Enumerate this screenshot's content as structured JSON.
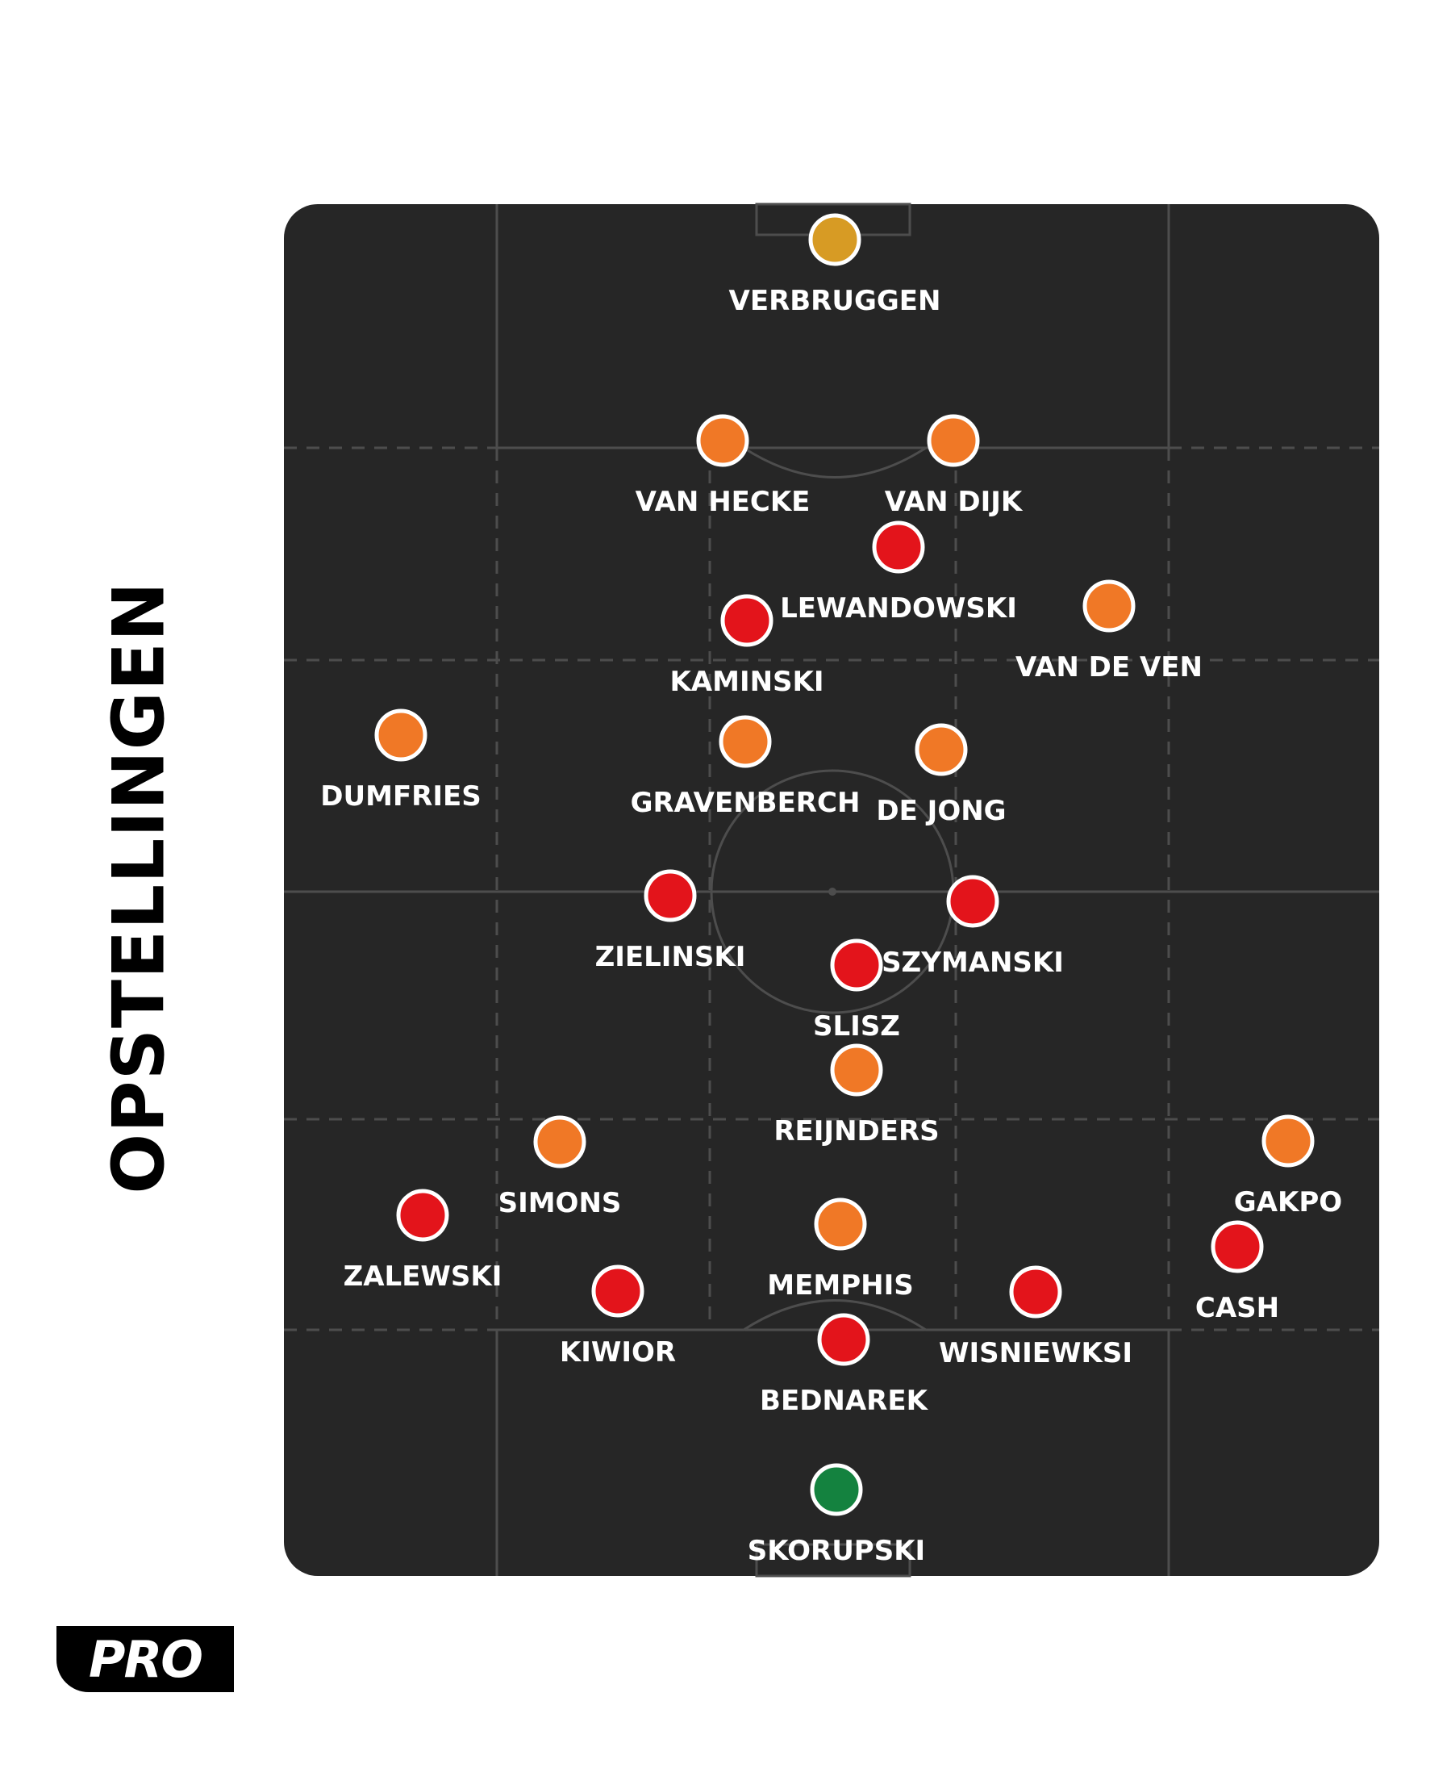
{
  "title": "OPSTELLINGEN",
  "logo_text": "PRO",
  "colors": {
    "pitch": "#262626",
    "lines": "#4d4d4d",
    "netherlands": "#f07826",
    "netherlands_keeper": "#d79b24",
    "poland": "#e3141b",
    "poland_keeper": "#14823f",
    "label": "#ffffff"
  },
  "teams": {
    "netherlands": {
      "players": [
        {
          "name": "VERBRUGGEN",
          "role": "keeper"
        },
        {
          "name": "VAN HECKE"
        },
        {
          "name": "VAN DIJK"
        },
        {
          "name": "VAN DE VEN"
        },
        {
          "name": "DUMFRIES"
        },
        {
          "name": "GRAVENBERCH"
        },
        {
          "name": "DE JONG"
        },
        {
          "name": "REIJNDERS"
        },
        {
          "name": "SIMONS"
        },
        {
          "name": "GAKPO"
        },
        {
          "name": "MEMPHIS"
        }
      ]
    },
    "poland": {
      "players": [
        {
          "name": "LEWANDOWSKI"
        },
        {
          "name": "KAMINSKI"
        },
        {
          "name": "ZIELINSKI"
        },
        {
          "name": "SZYMANSKI"
        },
        {
          "name": "SLISZ"
        },
        {
          "name": "ZALEWSKI"
        },
        {
          "name": "KIWIOR"
        },
        {
          "name": "CASH"
        },
        {
          "name": "WISNIEWKSI"
        },
        {
          "name": "BEDNAREK"
        },
        {
          "name": "SKORUPSKI",
          "role": "keeper"
        }
      ]
    }
  }
}
